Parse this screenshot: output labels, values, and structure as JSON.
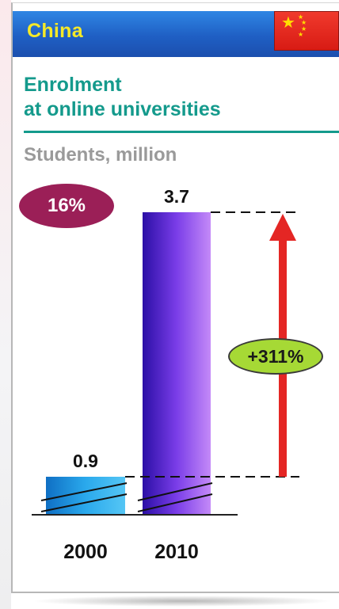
{
  "header": {
    "country": "China"
  },
  "title": {
    "line1": "Enrolment",
    "line2": "at online universities"
  },
  "units": "Students, million",
  "share_badge": "16%",
  "growth_badge": "+311%",
  "colors": {
    "header": "#1f5fc4",
    "country_text": "#f5e928",
    "title": "#149a8c",
    "share_badge": "#9b1f57",
    "growth_badge": "#a6d935",
    "arrow": "#e42624",
    "bar_2000": "#1e9fe0",
    "bar_2010": "#7a3de8"
  },
  "chart_data": {
    "type": "bar",
    "categories": [
      "2000",
      "2010"
    ],
    "values": [
      0.9,
      3.7
    ],
    "data_labels": [
      "0.9",
      "3.7"
    ],
    "axis_break": true,
    "annotation": {
      "text": "+311%",
      "from": "2000",
      "to": "2010",
      "arrow": "up"
    },
    "title": "Enrolment at online universities",
    "ylabel": "Students, million",
    "grid": false,
    "legend": "none"
  }
}
